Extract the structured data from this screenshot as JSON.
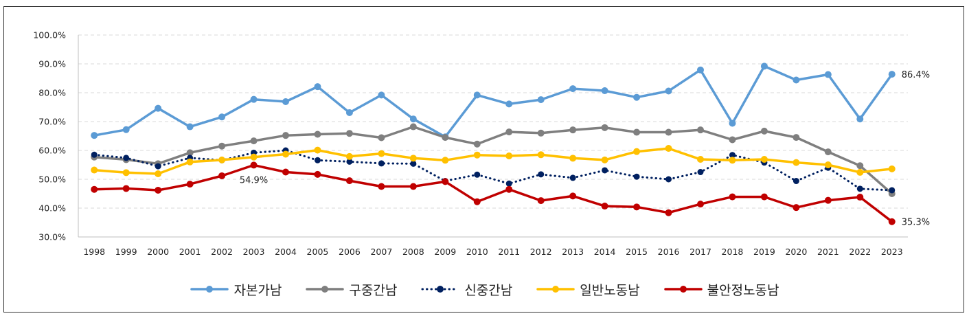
{
  "chart_data": {
    "type": "line",
    "categories": [
      "1998",
      "1999",
      "2000",
      "2001",
      "2002",
      "2003",
      "2004",
      "2005",
      "2006",
      "2007",
      "2008",
      "2009",
      "2010",
      "2011",
      "2012",
      "2013",
      "2014",
      "2015",
      "2016",
      "2017",
      "2018",
      "2019",
      "2020",
      "2021",
      "2022",
      "2023"
    ],
    "y_ticks": [
      "30.0%",
      "40.0%",
      "50.0%",
      "60.0%",
      "70.0%",
      "80.0%",
      "90.0%",
      "100.0%"
    ],
    "ylim": [
      30,
      100
    ],
    "grid": "horizontal dashed",
    "legend_position": "bottom",
    "series": [
      {
        "name": "자본가남",
        "color": "#5B9BD5",
        "style": "solid",
        "values": [
          65.2,
          67.2,
          74.6,
          68.2,
          71.6,
          77.7,
          76.9,
          82.1,
          73.1,
          79.2,
          70.9,
          64.7,
          79.2,
          76.1,
          77.6,
          81.4,
          80.7,
          78.4,
          80.6,
          87.9,
          69.4,
          89.2,
          84.4,
          86.3,
          70.9,
          86.4
        ]
      },
      {
        "name": "구중간남",
        "color": "#7F7F7F",
        "style": "solid",
        "values": [
          57.7,
          56.8,
          55.4,
          59.2,
          61.5,
          63.3,
          65.2,
          65.6,
          65.9,
          64.4,
          68.2,
          64.5,
          62.2,
          66.4,
          66.0,
          67.1,
          67.9,
          66.3,
          66.3,
          67.1,
          63.7,
          66.7,
          64.5,
          59.5,
          54.7,
          45.0
        ]
      },
      {
        "name": "신중간남",
        "color": "#002060",
        "style": "dotted",
        "values": [
          58.5,
          57.4,
          54.5,
          57.4,
          56.6,
          59.2,
          60.0,
          56.6,
          56.1,
          55.5,
          55.4,
          49.4,
          51.6,
          48.5,
          51.7,
          50.5,
          53.1,
          50.9,
          50.0,
          52.5,
          58.4,
          55.8,
          49.4,
          54.0,
          46.7,
          46.2
        ]
      },
      {
        "name": "일반노동남",
        "color": "#FFC000",
        "style": "solid",
        "values": [
          53.2,
          52.3,
          51.9,
          56.0,
          56.7,
          57.7,
          58.7,
          60.1,
          57.9,
          58.9,
          57.3,
          56.6,
          58.4,
          58.1,
          58.5,
          57.3,
          56.7,
          59.6,
          60.7,
          56.9,
          56.6,
          56.9,
          55.8,
          55.0,
          52.4,
          53.6
        ]
      },
      {
        "name": "불안정노동남",
        "color": "#C00000",
        "style": "solid",
        "values": [
          46.5,
          46.8,
          46.2,
          48.3,
          51.2,
          54.9,
          52.5,
          51.7,
          49.5,
          47.5,
          47.5,
          49.2,
          42.2,
          46.5,
          42.6,
          44.2,
          40.7,
          40.4,
          38.4,
          41.4,
          43.9,
          43.9,
          40.2,
          42.7,
          43.8,
          35.3
        ]
      }
    ],
    "annotations": [
      {
        "series": "불안정노동남",
        "category": "2003",
        "text": "54.9%"
      },
      {
        "series": "자본가남",
        "category": "2023",
        "text": "86.4%"
      },
      {
        "series": "불안정노동남",
        "category": "2023",
        "text": "35.3%"
      }
    ]
  }
}
